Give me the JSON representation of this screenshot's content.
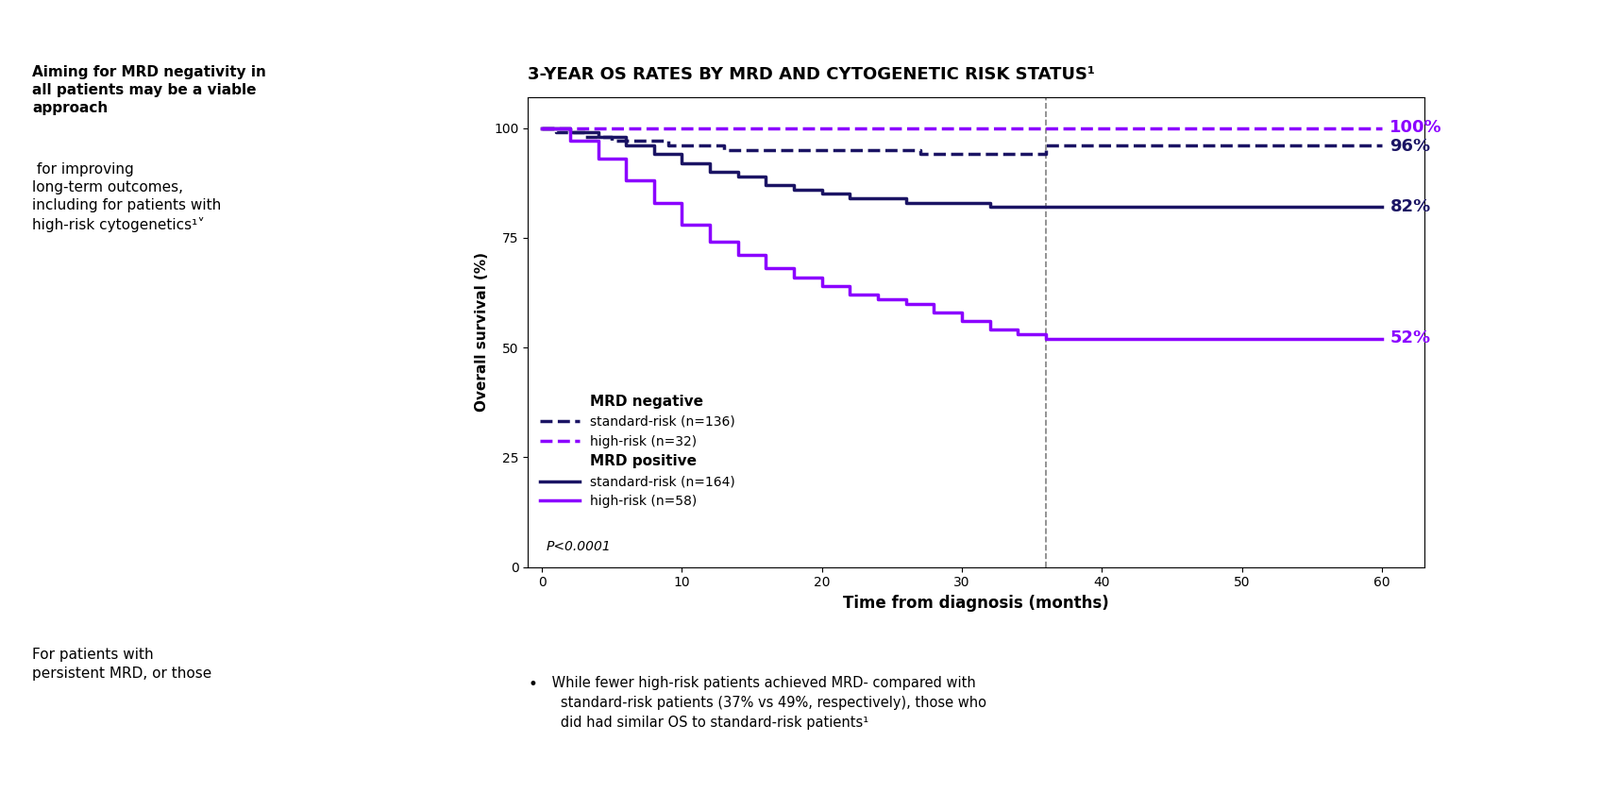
{
  "chart_data": {
    "type": "step",
    "title": "3-YEAR OS RATES BY MRD AND CYTOGENETIC RISK STATUS¹",
    "x_label": "Time from diagnosis (months)",
    "y_label": "Overall survival (%)",
    "xlim": [
      -1,
      63
    ],
    "ylim": [
      0,
      107
    ],
    "xticks": [
      0,
      10,
      20,
      30,
      40,
      50,
      60
    ],
    "yticks": [
      0,
      25,
      50,
      75,
      100
    ],
    "grid": false,
    "legend": "lower left",
    "reference_x": 36,
    "annotation": "P<0.0001",
    "series": [
      {
        "name": "standard-risk (n=136)",
        "group": "MRD negative",
        "color": "#1B1464",
        "line_style": "dashed",
        "x": [
          0,
          1,
          3,
          5,
          7,
          9,
          11,
          13,
          15,
          17,
          19,
          21,
          23,
          25,
          27,
          29,
          31,
          33,
          36,
          60
        ],
        "values": [
          100,
          99,
          98,
          97,
          97,
          96,
          96,
          95,
          95,
          95,
          95,
          95,
          95,
          95,
          94,
          94,
          94,
          94,
          96,
          96
        ],
        "end_value": 96,
        "end_label": "96%"
      },
      {
        "name": "high-risk (n=32)",
        "group": "MRD negative",
        "color": "#8B00FF",
        "line_style": "dashed",
        "x": [
          0,
          60
        ],
        "values": [
          100,
          100
        ],
        "end_value": 100,
        "end_label": "100%"
      },
      {
        "name": "standard-risk (n=164)",
        "group": "MRD positive",
        "color": "#1B1464",
        "line_style": "solid",
        "x": [
          0,
          2,
          4,
          6,
          8,
          10,
          12,
          14,
          16,
          18,
          20,
          22,
          24,
          26,
          28,
          30,
          32,
          34,
          36,
          38,
          50,
          52,
          60
        ],
        "values": [
          100,
          99,
          98,
          96,
          94,
          92,
          90,
          89,
          87,
          86,
          85,
          84,
          84,
          83,
          83,
          83,
          82,
          82,
          82,
          82,
          82,
          82,
          82
        ],
        "end_value": 82,
        "end_label": "82%"
      },
      {
        "name": "high-risk (n=58)",
        "group": "MRD positive",
        "color": "#8B00FF",
        "line_style": "solid",
        "x": [
          0,
          2,
          4,
          6,
          8,
          10,
          12,
          14,
          16,
          18,
          20,
          22,
          24,
          26,
          28,
          30,
          32,
          34,
          36,
          60
        ],
        "values": [
          100,
          97,
          93,
          88,
          83,
          78,
          74,
          71,
          68,
          66,
          64,
          62,
          61,
          60,
          58,
          56,
          54,
          53,
          52,
          52
        ],
        "end_value": 52,
        "end_label": "52%"
      }
    ],
    "side_text_bold": "Aiming for MRD negativity in\nall patients may be a viable\napproach",
    "side_text": " for improving\nlong-term outcomes,\nincluding for patients with\nhigh-risk cytogenetics¹˅",
    "side_text_bottom": "For patients with\npersistent MRD, or those",
    "footnote_bullet": "•",
    "footnote": " While fewer high-risk patients achieved MRD- compared with\n   standard-risk patients (37% vs 49%, respectively), those who\n   did had similar OS to standard-risk patients¹"
  }
}
